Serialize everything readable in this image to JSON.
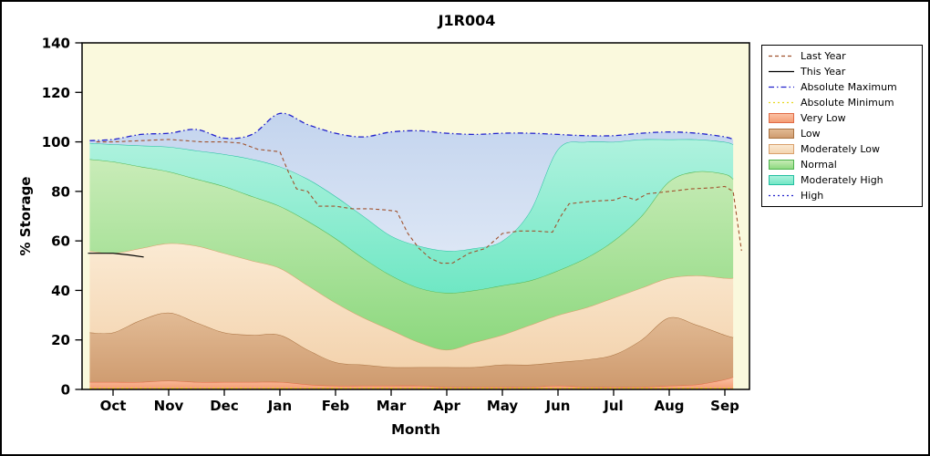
{
  "window": {
    "title": "J1R004"
  },
  "chart_data": {
    "type": "area",
    "title": "J1R004",
    "xlabel": "Month",
    "ylabel": "% Storage",
    "ylim": [
      0,
      140
    ],
    "ytick_step": 20,
    "plot_bg": "#FAF9DD",
    "x_categories": [
      "Oct",
      "Nov",
      "Dec",
      "Jan",
      "Feb",
      "Mar",
      "Apr",
      "May",
      "Jun",
      "Jul",
      "Aug",
      "Sep"
    ],
    "band_x": [
      -0.42,
      0,
      0.5,
      1,
      1.5,
      2,
      2.5,
      3,
      3.5,
      4,
      4.5,
      5,
      5.5,
      6,
      6.5,
      7,
      7.5,
      8,
      8.5,
      9,
      9.5,
      10,
      10.5,
      11,
      11.15
    ],
    "bands": [
      {
        "name": "Very Low",
        "values": [
          3,
          3,
          3,
          3.5,
          3,
          3,
          3,
          3,
          2,
          1.5,
          1.5,
          1.5,
          1.5,
          1,
          1,
          1,
          1,
          1.5,
          1,
          1,
          1,
          1.5,
          2,
          4,
          5
        ],
        "fill_top": "#FBC3A6",
        "fill_bottom": "#F49B72",
        "stroke": "#E06A45"
      },
      {
        "name": "Low",
        "values": [
          23,
          23,
          28,
          31,
          27,
          23,
          22,
          22,
          16,
          11,
          10,
          9,
          9,
          9,
          9,
          10,
          10,
          11,
          12,
          14,
          20,
          29,
          26,
          22,
          21
        ],
        "fill_top": "#E2BB95",
        "fill_bottom": "#CE9A6E",
        "stroke": "#A9713F"
      },
      {
        "name": "Moderately Low",
        "values": [
          56,
          55,
          57,
          59,
          58,
          55,
          52,
          49,
          42,
          35,
          29,
          24,
          19,
          16,
          19,
          22,
          26,
          30,
          33,
          37,
          41,
          45,
          46,
          45,
          45
        ],
        "fill_top": "#FBEAD3",
        "fill_bottom": "#F3D3AE",
        "stroke": "#D9A06B"
      },
      {
        "name": "Normal",
        "values": [
          93,
          92,
          90,
          88,
          85,
          82,
          78,
          74,
          68,
          61,
          53,
          46,
          41,
          39,
          40,
          42,
          44,
          48,
          53,
          60,
          70,
          84,
          88,
          87,
          85
        ],
        "fill_top": "#C9ECB8",
        "fill_bottom": "#8CD87E",
        "stroke": "#4DB34D"
      },
      {
        "name": "Moderately High",
        "values": [
          99.5,
          99,
          98.5,
          98,
          96.5,
          95,
          93,
          90,
          85,
          78,
          70,
          62,
          58,
          56,
          57,
          60,
          72,
          97,
          100,
          100,
          101,
          101,
          101,
          100,
          99
        ],
        "fill_top": "#AFF2DE",
        "fill_bottom": "#6FE7C4",
        "stroke": "#21BFA0"
      },
      {
        "name": "High",
        "values": [
          100.5,
          101,
          103,
          103.5,
          105,
          101.5,
          103,
          111.5,
          107,
          103.5,
          102,
          104,
          104.5,
          103.5,
          103,
          103.5,
          103.5,
          103,
          102.5,
          102.5,
          103.5,
          104,
          103.5,
          102,
          101
        ],
        "fill_top": "#C3D4EE",
        "fill_bottom": "#DCE6F5",
        "stroke": ""
      }
    ],
    "lines": [
      {
        "name": "Absolute Minimum",
        "color": "#F0E10A",
        "dash": "2 3",
        "width": 1.3,
        "smooth": false,
        "x": [
          -0.42,
          11.15
        ],
        "values": [
          0.5,
          0.5
        ]
      },
      {
        "name": "Last Year",
        "color": "#A0522D",
        "dash": "4 3",
        "width": 1.1,
        "smooth": false,
        "x": [
          -0.3,
          0,
          0.5,
          1,
          1.3,
          1.6,
          2,
          2.3,
          2.6,
          2.8,
          3,
          3.15,
          3.3,
          3.5,
          3.7,
          4,
          4.3,
          4.6,
          4.9,
          5.1,
          5.3,
          5.5,
          5.7,
          5.9,
          6.1,
          6.4,
          6.7,
          7,
          7.3,
          7.6,
          7.9,
          8.05,
          8.2,
          8.6,
          9,
          9.2,
          9.4,
          9.6,
          10,
          10.4,
          10.8,
          11,
          11.15,
          11.3
        ],
        "values": [
          100,
          100,
          100.5,
          101,
          100.5,
          100,
          100,
          99.5,
          97,
          96.5,
          96,
          88,
          81,
          80,
          74,
          74,
          73,
          73,
          72.5,
          72,
          63,
          57,
          53,
          51,
          51,
          55,
          57,
          63,
          64,
          64,
          63.5,
          70,
          75,
          76,
          76.5,
          78,
          76.5,
          79,
          80,
          81,
          81.5,
          82,
          80,
          56
        ]
      },
      {
        "name": "This Year",
        "color": "#000000",
        "dash": "",
        "width": 1.2,
        "smooth": false,
        "x": [
          -0.45,
          0,
          0.3,
          0.55
        ],
        "values": [
          55,
          55,
          54.3,
          53.5
        ]
      },
      {
        "name": "Absolute Maximum",
        "color": "#2222CC",
        "dash": "6 3 1.5 3",
        "width": 1.3,
        "smooth": true,
        "x": [
          -0.42,
          0,
          0.5,
          1,
          1.5,
          2,
          2.5,
          3,
          3.5,
          4,
          4.5,
          5,
          5.5,
          6,
          6.5,
          7,
          7.5,
          8,
          8.5,
          9,
          9.5,
          10,
          10.5,
          11,
          11.15
        ],
        "values": [
          100.5,
          101,
          103,
          103.5,
          105,
          101.5,
          103,
          111.5,
          107,
          103.5,
          102,
          104,
          104.5,
          103.5,
          103,
          103.5,
          103.5,
          103,
          102.5,
          102.5,
          103.5,
          104,
          103.5,
          102,
          101
        ]
      }
    ],
    "legend": [
      {
        "label": "Last Year",
        "swatch": "line",
        "color": "#A0522D",
        "dash": "4 3"
      },
      {
        "label": "This Year",
        "swatch": "line",
        "color": "#000000",
        "dash": ""
      },
      {
        "label": "Absolute Maximum",
        "swatch": "line",
        "color": "#2222CC",
        "dash": "6 3 1.5 3"
      },
      {
        "label": "Absolute Minimum",
        "swatch": "line",
        "color": "#E8D921",
        "dash": "2 3"
      },
      {
        "label": "Very Low",
        "swatch": "box",
        "fill_top": "#FBC3A6",
        "fill_bottom": "#F49B72",
        "stroke": "#E06A45"
      },
      {
        "label": "Low",
        "swatch": "box",
        "fill_top": "#E2BB95",
        "fill_bottom": "#CE9A6E",
        "stroke": "#A9713F"
      },
      {
        "label": "Moderately Low",
        "swatch": "box",
        "fill_top": "#FBEAD3",
        "fill_bottom": "#F3D3AE",
        "stroke": "#D9A06B"
      },
      {
        "label": "Normal",
        "swatch": "box",
        "fill_top": "#C9ECB8",
        "fill_bottom": "#8CD87E",
        "stroke": "#4DB34D"
      },
      {
        "label": "Moderately High",
        "swatch": "box",
        "fill_top": "#AFF2DE",
        "fill_bottom": "#6FE7C4",
        "stroke": "#21BFA0"
      },
      {
        "label": "High",
        "swatch": "line",
        "color": "#2222CC",
        "dash": "2 3"
      }
    ]
  }
}
